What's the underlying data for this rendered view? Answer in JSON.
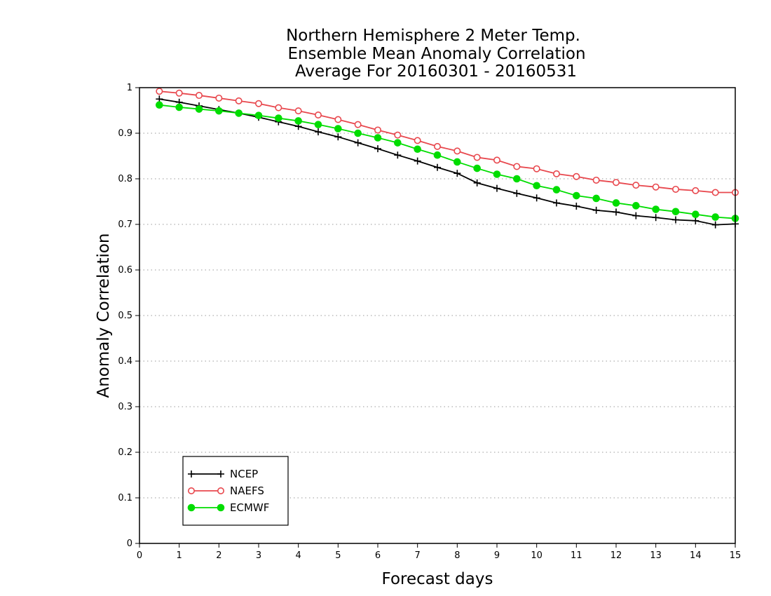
{
  "chart_data": {
    "type": "line",
    "title": [
      "Northern Hemisphere 2 Meter Temp.",
      "Ensemble Mean Anomaly Correlation",
      "Average For 20160301 - 20160531"
    ],
    "xlabel": "Forecast days",
    "ylabel": "Anomaly Correlation",
    "xlim": [
      0,
      15
    ],
    "ylim": [
      0,
      1
    ],
    "xticks": [
      "0",
      "1",
      "2",
      "3",
      "4",
      "5",
      "6",
      "7",
      "8",
      "9",
      "10",
      "11",
      "12",
      "13",
      "14",
      "15"
    ],
    "yticks": [
      "0",
      "0.1",
      "0.2",
      "0.3",
      "0.4",
      "0.5",
      "0.6",
      "0.7",
      "0.8",
      "0.9",
      "1"
    ],
    "grid": "horizontal dotted",
    "legend_position": "bottom-left",
    "x": [
      0.5,
      1,
      1.5,
      2,
      2.5,
      3,
      3.5,
      4,
      4.5,
      5,
      5.5,
      6,
      6.5,
      7,
      7.5,
      8,
      8.5,
      9,
      9.5,
      10,
      10.5,
      11,
      11.5,
      12,
      12.5,
      13,
      13.5,
      14,
      14.5,
      15
    ],
    "series": [
      {
        "name": "NCEP",
        "color": "#000000",
        "marker": "plus",
        "values": [
          0.975,
          0.968,
          0.96,
          0.952,
          0.944,
          0.935,
          0.925,
          0.915,
          0.903,
          0.892,
          0.879,
          0.866,
          0.852,
          0.839,
          0.825,
          0.812,
          0.791,
          0.779,
          0.768,
          0.758,
          0.747,
          0.74,
          0.731,
          0.727,
          0.719,
          0.715,
          0.71,
          0.708,
          0.699,
          0.701
        ]
      },
      {
        "name": "NAEFS",
        "color": "#e8484e",
        "marker": "open-circle",
        "values": [
          0.992,
          0.988,
          0.983,
          0.977,
          0.971,
          0.965,
          0.956,
          0.949,
          0.94,
          0.93,
          0.919,
          0.907,
          0.896,
          0.884,
          0.871,
          0.861,
          0.847,
          0.841,
          0.827,
          0.822,
          0.811,
          0.805,
          0.797,
          0.792,
          0.786,
          0.782,
          0.777,
          0.774,
          0.77,
          0.77
        ]
      },
      {
        "name": "ECMWF",
        "color": "#00dd00",
        "marker": "filled-circle",
        "values": [
          0.962,
          0.957,
          0.953,
          0.949,
          0.944,
          0.939,
          0.933,
          0.927,
          0.919,
          0.91,
          0.9,
          0.89,
          0.879,
          0.865,
          0.852,
          0.837,
          0.823,
          0.81,
          0.8,
          0.785,
          0.776,
          0.763,
          0.757,
          0.747,
          0.741,
          0.733,
          0.728,
          0.722,
          0.716,
          0.713
        ]
      }
    ]
  }
}
